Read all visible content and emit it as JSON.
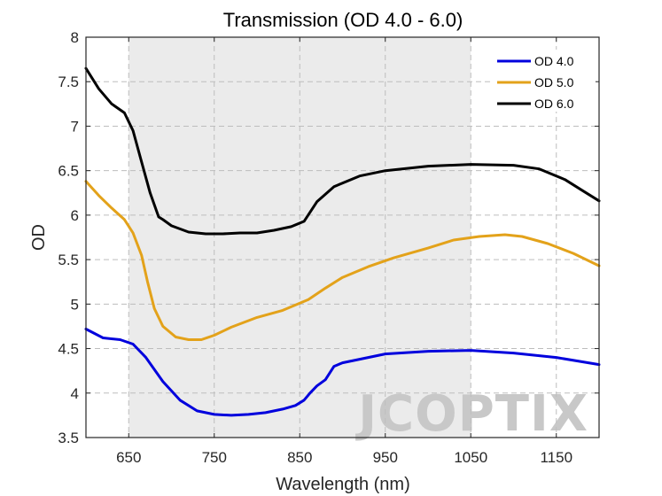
{
  "chart_data": {
    "type": "line",
    "title": "Transmission (OD 4.0 - 6.0)",
    "xlabel": "Wavelength (nm)",
    "ylabel": "OD",
    "xlim": [
      600,
      1200
    ],
    "ylim": [
      3.5,
      8
    ],
    "xticks": [
      650,
      750,
      850,
      950,
      1050,
      1150
    ],
    "yticks": [
      3.5,
      4,
      4.5,
      5,
      5.5,
      6,
      6.5,
      7,
      7.5,
      8
    ],
    "grid": true,
    "legend_position": "top-right",
    "shaded_region": {
      "x_start": 650,
      "x_end": 1050,
      "color": "#ebebeb"
    },
    "watermark": "JCOPTIX",
    "series": [
      {
        "name": "OD 4.0",
        "color": "#0000dd",
        "x": [
          600,
          620,
          640,
          655,
          670,
          690,
          710,
          730,
          750,
          770,
          790,
          810,
          830,
          845,
          855,
          862,
          870,
          880,
          890,
          900,
          920,
          950,
          1000,
          1050,
          1100,
          1150,
          1200
        ],
        "y": [
          4.72,
          4.62,
          4.6,
          4.55,
          4.4,
          4.13,
          3.92,
          3.8,
          3.76,
          3.75,
          3.76,
          3.78,
          3.82,
          3.86,
          3.92,
          4.0,
          4.08,
          4.15,
          4.3,
          4.34,
          4.38,
          4.44,
          4.47,
          4.48,
          4.45,
          4.4,
          4.32
        ]
      },
      {
        "name": "OD 5.0",
        "color": "#e3a21a",
        "x": [
          600,
          615,
          630,
          645,
          655,
          665,
          672,
          680,
          690,
          705,
          720,
          735,
          750,
          770,
          800,
          830,
          860,
          880,
          900,
          930,
          960,
          1000,
          1030,
          1060,
          1090,
          1110,
          1140,
          1170,
          1200
        ],
        "y": [
          6.38,
          6.22,
          6.08,
          5.95,
          5.8,
          5.55,
          5.25,
          4.95,
          4.75,
          4.63,
          4.6,
          4.6,
          4.65,
          4.74,
          4.85,
          4.93,
          5.05,
          5.18,
          5.3,
          5.42,
          5.52,
          5.63,
          5.72,
          5.76,
          5.78,
          5.76,
          5.68,
          5.57,
          5.43
        ]
      },
      {
        "name": "OD 6.0",
        "color": "#000000",
        "x": [
          600,
          615,
          630,
          645,
          655,
          665,
          675,
          685,
          690,
          700,
          720,
          740,
          760,
          780,
          800,
          820,
          840,
          855,
          870,
          890,
          920,
          950,
          1000,
          1050,
          1100,
          1130,
          1160,
          1180,
          1200
        ],
        "y": [
          7.65,
          7.42,
          7.25,
          7.15,
          6.95,
          6.6,
          6.25,
          5.98,
          5.95,
          5.88,
          5.81,
          5.79,
          5.79,
          5.8,
          5.8,
          5.83,
          5.87,
          5.93,
          6.15,
          6.32,
          6.44,
          6.5,
          6.55,
          6.57,
          6.56,
          6.52,
          6.4,
          6.28,
          6.16
        ]
      }
    ]
  }
}
